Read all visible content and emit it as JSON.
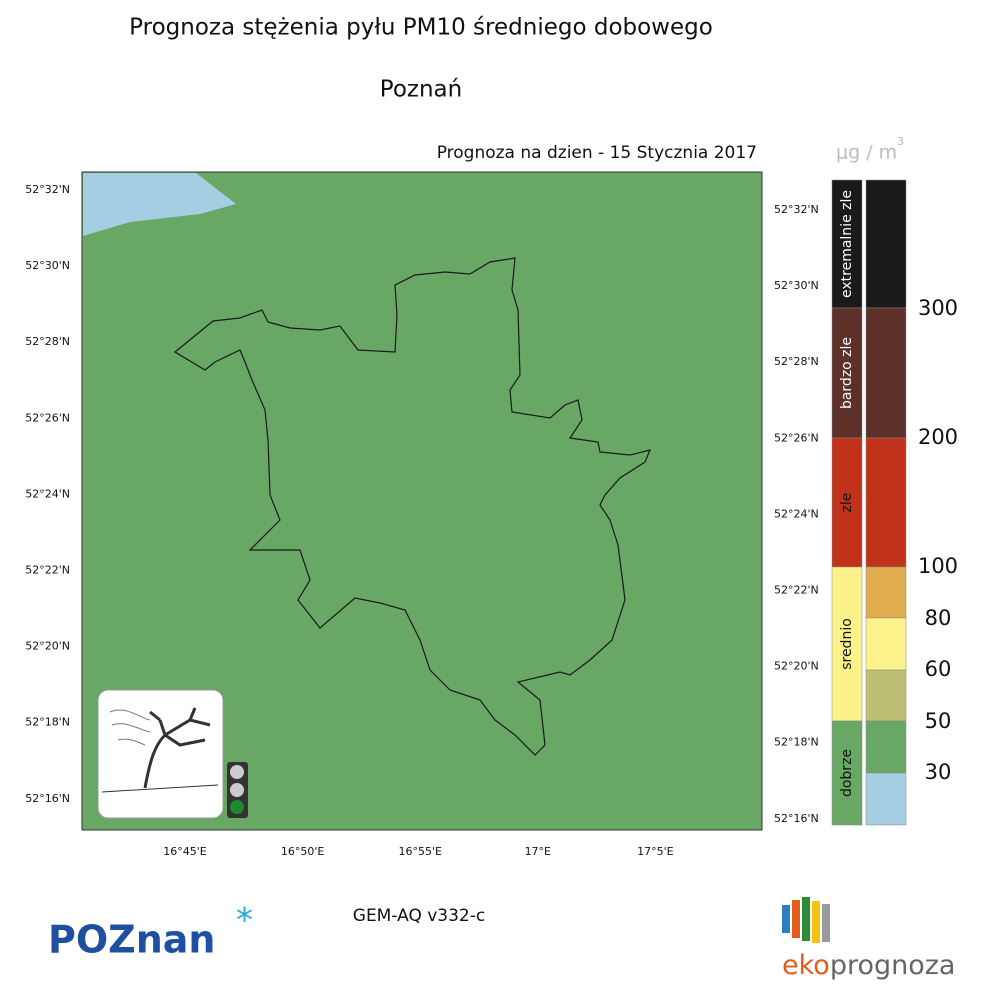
{
  "header": {
    "title": "Prognoza stężenia pyłu PM10 średniego dobowego",
    "city": "Poznań",
    "date": "Prognoza na dzien -  15 Stycznia 2017"
  },
  "map": {
    "lat_left": [
      "52°32'N",
      "52°30'N",
      "52°28'N",
      "52°26'N",
      "52°24'N",
      "52°22'N",
      "52°20'N",
      "52°18'N",
      "52°16'N"
    ],
    "lat_right": [
      "52°32'N",
      "52°30'N",
      "52°28'N",
      "52°26'N",
      "52°24'N",
      "52°22'N",
      "52°20'N",
      "52°18'N",
      "52°16'N"
    ],
    "lon": [
      "16°45'E",
      "16°50'E",
      "16°55'E",
      "17°E",
      "17°5'E"
    ]
  },
  "legend": {
    "unit": {
      "base": "μg / m",
      "sup": "3"
    },
    "categories": [
      "extremalnie zle",
      "bardzo zle",
      "zle",
      "srednio",
      "dobrze"
    ],
    "thresholds": [
      300,
      200,
      100,
      80,
      60,
      50,
      30
    ]
  },
  "footer": {
    "model": "GEM-AQ v332-c",
    "logo_left": "POZnan",
    "logo_right": {
      "eko": "eko",
      "prognoza": "prognoza"
    }
  }
}
